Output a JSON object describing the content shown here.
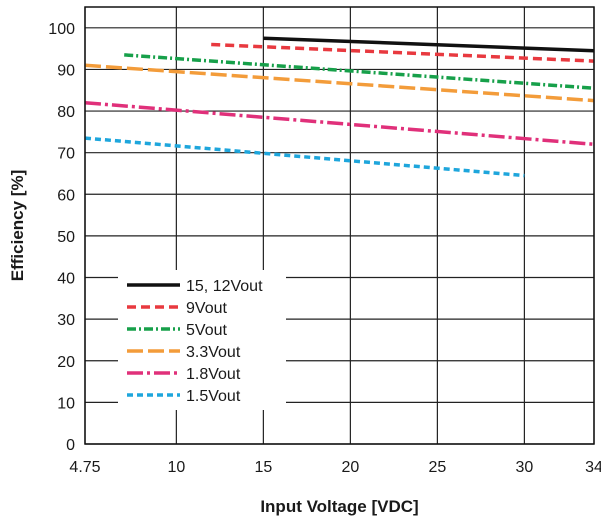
{
  "chart_data": {
    "type": "line",
    "xlabel": "Input Voltage [VDC]",
    "ylabel": "Efficiency [%]",
    "xlim": [
      4.75,
      34
    ],
    "ylim": [
      0,
      105
    ],
    "x_ticks": [
      {
        "value": 4.75,
        "label": "4.75"
      },
      {
        "value": 10,
        "label": "10"
      },
      {
        "value": 15,
        "label": "15"
      },
      {
        "value": 20,
        "label": "20"
      },
      {
        "value": 25,
        "label": "25"
      },
      {
        "value": 30,
        "label": "30"
      },
      {
        "value": 34,
        "label": "34"
      }
    ],
    "y_ticks": [
      {
        "value": 0,
        "label": "0"
      },
      {
        "value": 10,
        "label": "10"
      },
      {
        "value": 20,
        "label": "20"
      },
      {
        "value": 30,
        "label": "30"
      },
      {
        "value": 40,
        "label": "40"
      },
      {
        "value": 50,
        "label": "50"
      },
      {
        "value": 60,
        "label": "60"
      },
      {
        "value": 70,
        "label": "70"
      },
      {
        "value": 80,
        "label": "80"
      },
      {
        "value": 90,
        "label": "90"
      },
      {
        "value": 100,
        "label": "100"
      }
    ],
    "grid": true,
    "legend_position": "bottom-left",
    "series": [
      {
        "name": "15, 12Vout",
        "color": "#111111",
        "dash": "solid",
        "points": [
          [
            15,
            97.5
          ],
          [
            34,
            94.5
          ]
        ]
      },
      {
        "name": "9Vout",
        "color": "#e8393f",
        "dash": "dashed",
        "points": [
          [
            12,
            96
          ],
          [
            34,
            92
          ]
        ]
      },
      {
        "name": "5Vout",
        "color": "#17a04a",
        "dash": "dash-dot",
        "points": [
          [
            7,
            93.5
          ],
          [
            34,
            85.5
          ]
        ]
      },
      {
        "name": "3.3Vout",
        "color": "#f39c3a",
        "dash": "long-dash",
        "points": [
          [
            4.75,
            91
          ],
          [
            34,
            82.5
          ]
        ]
      },
      {
        "name": "1.8Vout",
        "color": "#e0307a",
        "dash": "long-dash-dot",
        "points": [
          [
            4.75,
            82
          ],
          [
            34,
            72
          ]
        ]
      },
      {
        "name": "1.5Vout",
        "color": "#1ea6dc",
        "dash": "short-dash",
        "points": [
          [
            4.75,
            73.5
          ],
          [
            30,
            64.5
          ]
        ]
      }
    ]
  }
}
